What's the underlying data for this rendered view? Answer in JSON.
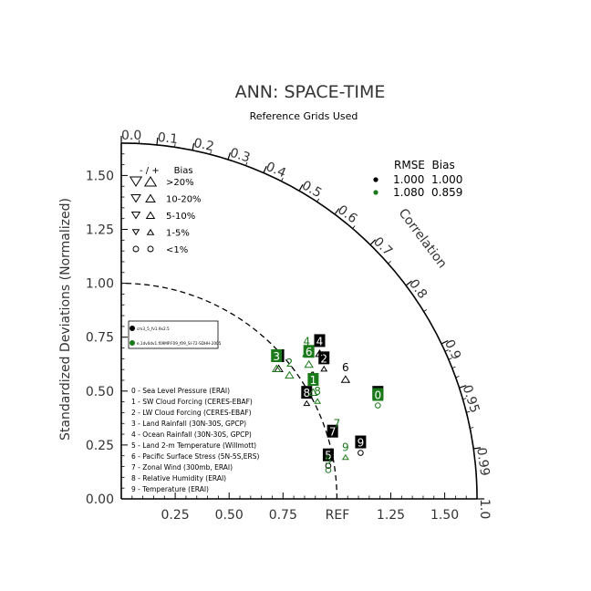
{
  "chart_data": {
    "type": "taylor",
    "title": "ANN: SPACE-TIME",
    "subtitle": "Reference Grids Used",
    "ylabel": "Standardized Deviations (Normalized)",
    "correlation_label": "Correlation",
    "ref_label": "REF",
    "std_range": [
      0,
      1.65
    ],
    "x_ticks": [
      {
        "value": 0.25,
        "label": "0.25"
      },
      {
        "value": 0.5,
        "label": "0.50"
      },
      {
        "value": 0.75,
        "label": "0.75"
      },
      {
        "value": 1.25,
        "label": "1.25"
      },
      {
        "value": 1.5,
        "label": "1.50"
      }
    ],
    "y_ticks": [
      {
        "value": 0.0,
        "label": "0.00"
      },
      {
        "value": 0.25,
        "label": "0.25"
      },
      {
        "value": 0.5,
        "label": "0.50"
      },
      {
        "value": 0.75,
        "label": "0.75"
      },
      {
        "value": 1.0,
        "label": "1.00"
      },
      {
        "value": 1.25,
        "label": "1.25"
      },
      {
        "value": 1.5,
        "label": "1.50"
      }
    ],
    "corr_ticks": [
      {
        "value": 0.0,
        "label": "0.0"
      },
      {
        "value": 0.1,
        "label": "0.1"
      },
      {
        "value": 0.2,
        "label": "0.2"
      },
      {
        "value": 0.3,
        "label": "0.3"
      },
      {
        "value": 0.4,
        "label": "0.4"
      },
      {
        "value": 0.5,
        "label": "0.5"
      },
      {
        "value": 0.6,
        "label": "0.6"
      },
      {
        "value": 0.7,
        "label": "0.7"
      },
      {
        "value": 0.8,
        "label": "0.8"
      },
      {
        "value": 0.9,
        "label": "0.9"
      },
      {
        "value": 0.95,
        "label": "0.95"
      },
      {
        "value": 0.99,
        "label": "0.99"
      },
      {
        "value": 1.0,
        "label": "1.0"
      }
    ],
    "bias_legend": {
      "header": "- / +     Bias",
      "rows": [
        ">20%",
        "10-20%",
        "5-10%",
        "1-5%",
        "<1%"
      ]
    },
    "rmse_bias_legend": {
      "header": "RMSE  Bias",
      "rows": [
        {
          "color": "#000000",
          "rmse": "1.000",
          "bias": "1.000"
        },
        {
          "color": "#1a7a1a",
          "rmse": "1.080",
          "bias": "0.859"
        }
      ]
    },
    "model_legend": [
      {
        "color": "#000000",
        "label": "cm3_5_fv1.9x2.5"
      },
      {
        "color": "#1a7a1a",
        "label": "e.1dv0dv1.f09MP.F09_f09_SI-72-SDHH-2005"
      }
    ],
    "variables": [
      "0 - Sea Level Pressure (ERAI)",
      "1 - SW Cloud Forcing (CERES-EBAF)",
      "2 - LW Cloud Forcing (CERES-EBAF)",
      "3 - Land Rainfall (30N-30S, GPCP)",
      "4 - Ocean Rainfall (30N-30S, GPCP)",
      "5 - Land 2-m Temperature (Willmott)",
      "6 - Pacific Surface Stress (5N-5S,ERS)",
      "7 - Zonal Wind (300mb, ERAI)",
      "8 - Relative Humidity (ERAI)",
      "9 - Temperature (ERAI)"
    ],
    "series": [
      {
        "color": "#000000",
        "points": [
          {
            "id": "0",
            "x": 1.19,
            "y": 0.49,
            "boxed": true,
            "marker": "none"
          },
          {
            "id": "1",
            "x": 0.89,
            "y": 0.57,
            "boxed": false,
            "marker": "none"
          },
          {
            "id": "2",
            "x": 0.94,
            "y": 0.65,
            "boxed": true,
            "marker": "up-small"
          },
          {
            "id": "3",
            "x": 0.73,
            "y": 0.66,
            "boxed": true,
            "marker": "up"
          },
          {
            "id": "4",
            "x": 0.92,
            "y": 0.73,
            "boxed": true,
            "marker": "up"
          },
          {
            "id": "5",
            "x": 0.96,
            "y": 0.2,
            "boxed": true,
            "marker": "circle"
          },
          {
            "id": "6",
            "x": 1.04,
            "y": 0.61,
            "boxed": false,
            "marker": "up"
          },
          {
            "id": "7",
            "x": 0.98,
            "y": 0.31,
            "boxed": true,
            "marker": "none"
          },
          {
            "id": "8",
            "x": 0.86,
            "y": 0.49,
            "boxed": true,
            "marker": "up-small"
          },
          {
            "id": "9",
            "x": 1.11,
            "y": 0.26,
            "boxed": true,
            "marker": "circle"
          }
        ]
      },
      {
        "color": "#1a7a1a",
        "points": [
          {
            "id": "0",
            "x": 1.19,
            "y": 0.48,
            "boxed": true,
            "marker": "circle"
          },
          {
            "id": "1",
            "x": 0.89,
            "y": 0.55,
            "boxed": true,
            "marker": "up"
          },
          {
            "id": "2",
            "x": 0.78,
            "y": 0.63,
            "boxed": false,
            "marker": "up"
          },
          {
            "id": "3",
            "x": 0.72,
            "y": 0.66,
            "boxed": true,
            "marker": "up"
          },
          {
            "id": "4",
            "x": 0.86,
            "y": 0.73,
            "boxed": false,
            "marker": "up"
          },
          {
            "id": "5",
            "x": 0.96,
            "y": 0.18,
            "boxed": false,
            "marker": "circle"
          },
          {
            "id": "6",
            "x": 0.87,
            "y": 0.68,
            "boxed": true,
            "marker": "up"
          },
          {
            "id": "7",
            "x": 1.0,
            "y": 0.35,
            "boxed": false,
            "marker": "none"
          },
          {
            "id": "8",
            "x": 0.91,
            "y": 0.5,
            "boxed": false,
            "marker": "up-small"
          },
          {
            "id": "9",
            "x": 1.04,
            "y": 0.24,
            "boxed": false,
            "marker": "up-small"
          }
        ]
      }
    ]
  }
}
